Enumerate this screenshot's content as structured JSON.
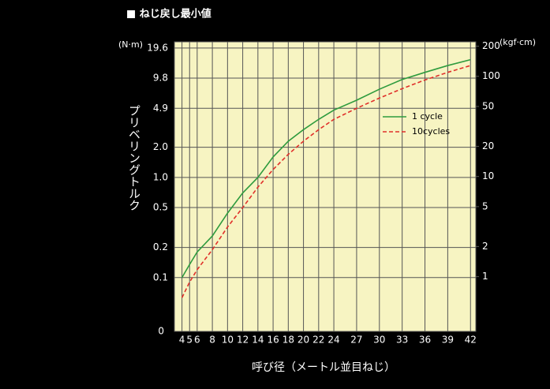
{
  "chart_data": {
    "type": "line",
    "title": "■ ねじ戻し最小値",
    "y_label": "プリベリングトルク",
    "x_label": "呼び径（メートル並目ねじ）",
    "y_unit": "(N·m)",
    "y2_unit": "(kgf·cm)",
    "y_bottom_label": "0",
    "x": [
      4,
      5,
      6,
      8,
      10,
      12,
      14,
      16,
      18,
      20,
      22,
      24,
      27,
      30,
      33,
      36,
      39,
      42
    ],
    "xlim": [
      3,
      42.7
    ],
    "xticks": [
      4,
      5,
      6,
      8,
      10,
      12,
      14,
      16,
      18,
      20,
      22,
      24,
      27,
      30,
      33,
      36,
      39,
      42
    ],
    "log_y": true,
    "ylim": [
      0.029,
      22.6
    ],
    "yticks": [
      19.6,
      9.8,
      4.9,
      {
        "value": 2,
        "label": "2.0"
      },
      {
        "value": 1,
        "label": "1.0"
      },
      0.5,
      0.2,
      0.1
    ],
    "y2lim": [
      0.284,
      221
    ],
    "y2ticks": [
      200,
      100,
      50,
      20,
      10,
      5,
      2,
      1
    ],
    "grid": true,
    "plot_background": "#f7f4c2",
    "series": [
      {
        "name": "1 cycle",
        "color": "#2e9b3e",
        "dash": false,
        "values": [
          0.1,
          0.135,
          0.18,
          0.26,
          0.44,
          0.7,
          1.0,
          1.6,
          2.3,
          3.0,
          3.8,
          4.7,
          5.9,
          7.6,
          9.5,
          11.2,
          13.1,
          15
        ]
      },
      {
        "name": "10cycles",
        "color": "#e0302a",
        "dash": true,
        "values": [
          0.063,
          0.09,
          0.12,
          0.19,
          0.32,
          0.5,
          0.8,
          1.2,
          1.7,
          2.3,
          3.0,
          3.8,
          4.9,
          6.2,
          7.7,
          9.4,
          11.2,
          13.1
        ]
      }
    ]
  }
}
